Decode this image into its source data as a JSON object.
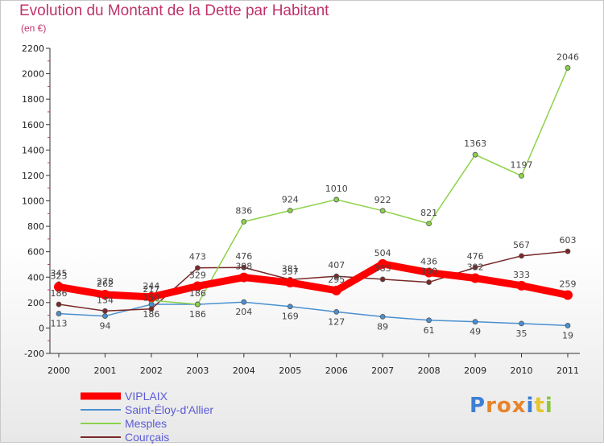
{
  "title": "Evolution du Montant de la Dette par Habitant",
  "unit": "(en €)",
  "logo": {
    "letters": [
      "P",
      "r",
      "o",
      "x",
      "i",
      "t",
      "i"
    ],
    "colors": [
      "#3d7fd6",
      "#e8842a",
      "#e8842a",
      "#e8842a",
      "#3d7fd6",
      "#e8c52a",
      "#8cc63f"
    ]
  },
  "chart_data": {
    "type": "line",
    "x": [
      "2000",
      "2001",
      "2002",
      "2003",
      "2004",
      "2005",
      "2006",
      "2007",
      "2008",
      "2009",
      "2010",
      "2011"
    ],
    "ylim": [
      -200,
      2200
    ],
    "yticks": [
      "-200",
      "0",
      "200",
      "400",
      "600",
      "800",
      "1000",
      "1200",
      "1400",
      "1600",
      "1800",
      "2000",
      "2200"
    ],
    "grid": false,
    "legend_position": "bottom-left",
    "series": [
      {
        "name": "VIPLAIX",
        "color": "#ff0000",
        "values": [
          323,
          262,
          244,
          329,
          398,
          357,
          295,
          504,
          436,
          392,
          333,
          259
        ],
        "labels": [
          "323",
          "262",
          "244",
          "329",
          "398",
          "357",
          "295",
          "504",
          "436",
          "392",
          "333",
          "259"
        ]
      },
      {
        "name": "Saint-Éloy-d'Allier",
        "color": "#4a90d0",
        "values": [
          113,
          94,
          186,
          186,
          204,
          169,
          127,
          89,
          61,
          49,
          35,
          19
        ],
        "labels": [
          "113",
          "94",
          "186",
          "186",
          "204",
          "169",
          "127",
          "89",
          "61",
          "49",
          "35",
          "19"
        ]
      },
      {
        "name": "Mesples",
        "color": "#8cd24a",
        "values": [
          345,
          278,
          217,
          186,
          836,
          924,
          1010,
          922,
          821,
          1363,
          1197,
          2046
        ],
        "labels": [
          "345",
          "278",
          "217",
          "186",
          "836",
          "924",
          "1010",
          "922",
          "821",
          "1363",
          "1197",
          "2046"
        ]
      },
      {
        "name": "Courçais",
        "color": "#7a2828",
        "values": [
          186,
          134,
          150,
          473,
          476,
          381,
          407,
          383,
          360,
          476,
          567,
          603
        ],
        "labels": [
          "186",
          "134",
          "150",
          "473",
          "476",
          "381",
          "407",
          "383",
          "360",
          "476",
          "567",
          "603"
        ]
      }
    ]
  }
}
